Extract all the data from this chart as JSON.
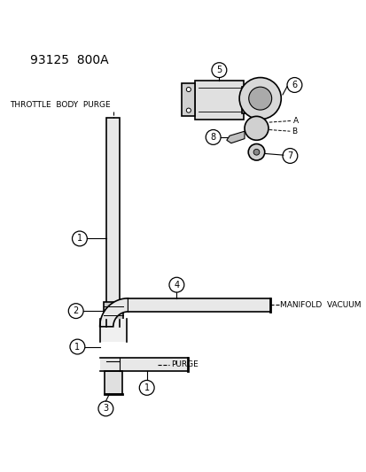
{
  "title": "93125  800A",
  "bg_color": "#ffffff",
  "fg_color": "#000000",
  "label_throttle": "THROTTLE  BODY  PURGE",
  "label_manifold": "MANIFOLD  VACUUM",
  "label_purge": "PURGE",
  "figsize": [
    4.14,
    5.33
  ],
  "dpi": 100
}
